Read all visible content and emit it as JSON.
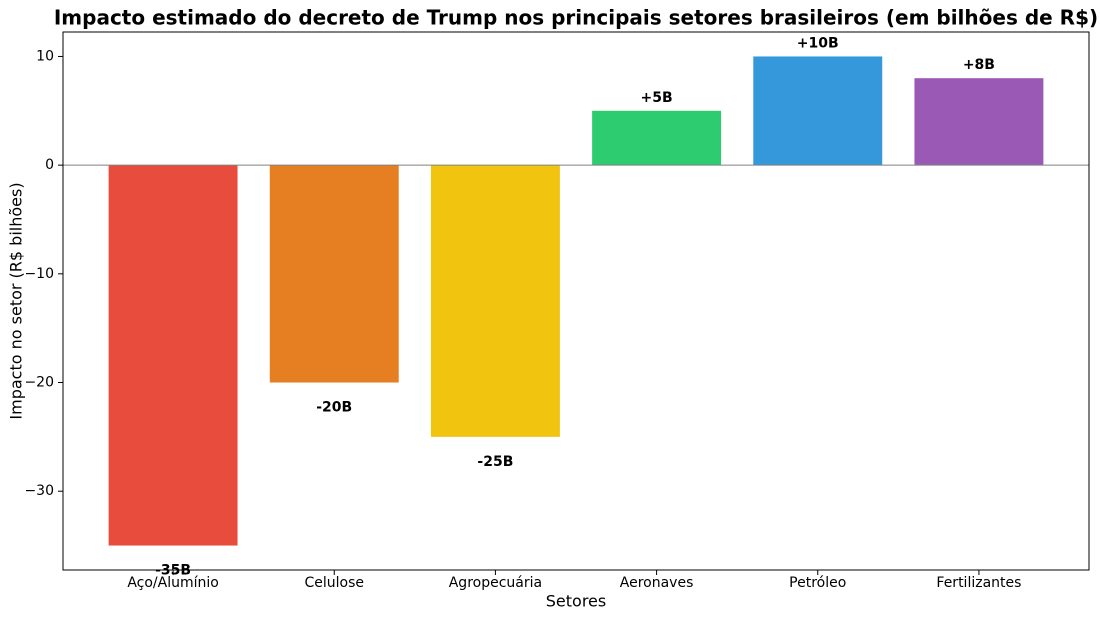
{
  "chart_data": {
    "type": "bar",
    "title": "Impacto estimado do decreto de Trump nos principais setores brasileiros (em bilhões de R$)",
    "x_label": "Setores",
    "y_label": "Impacto no setor (R$ bilhões)",
    "categories": [
      "Aço/Alumínio",
      "Celulose",
      "Agropecuária",
      "Aeronaves",
      "Petróleo",
      "Fertilizantes"
    ],
    "values": [
      -35,
      -20,
      -25,
      5,
      10,
      8
    ],
    "value_labels": [
      "-35B",
      "-20B",
      "-25B",
      "+5B",
      "+10B",
      "+8B"
    ],
    "colors": [
      "#e74c3c",
      "#e67e22",
      "#f1c40f",
      "#2ecc71",
      "#3498db",
      "#9b59b6"
    ],
    "ylim": [
      -37.25,
      12.25
    ],
    "yticks": [
      {
        "value": -30,
        "label": "−30"
      },
      {
        "value": -20,
        "label": "−20"
      },
      {
        "value": -10,
        "label": "−10"
      },
      0,
      10
    ],
    "zero_line": true
  }
}
